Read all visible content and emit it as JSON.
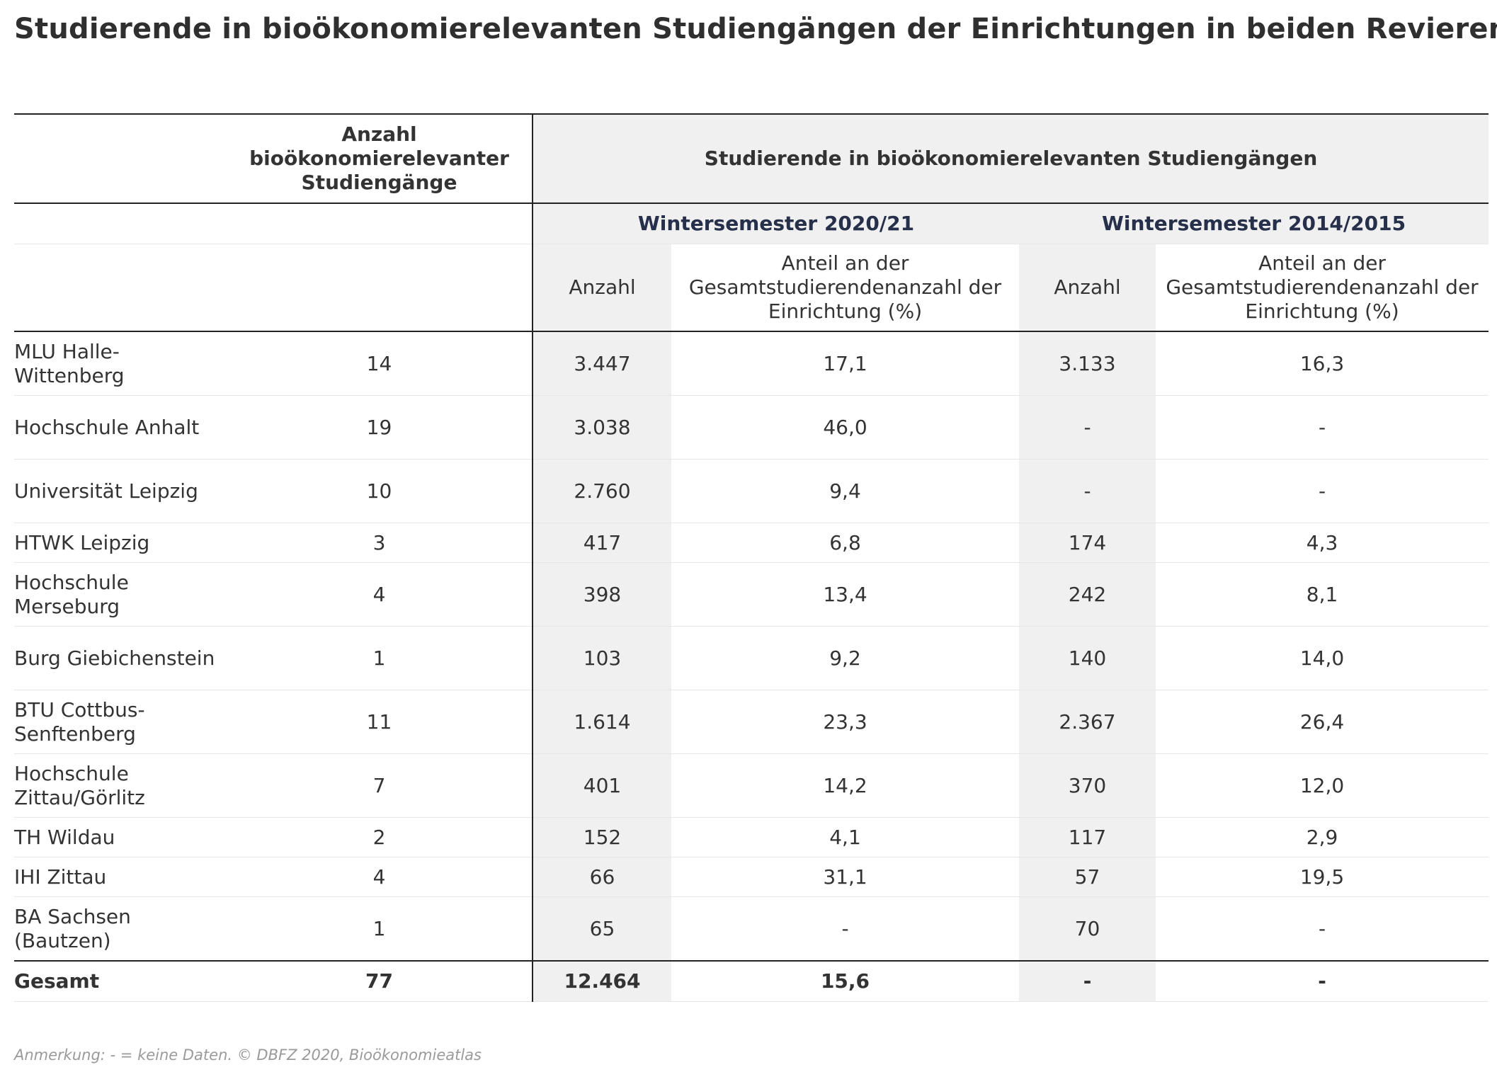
{
  "title": "Studierende in bioökonomierelevanten Studiengängen der Einrichtungen in beiden Revieren",
  "header": {
    "count_col_label": "Anzahl bioökonomierelevanter Studiengänge",
    "group_label": "Studierende in bioökonomierelevanten Studiengängen",
    "semester_a": "Wintersemester 2020/21",
    "semester_b": "Wintersemester 2014/2015",
    "sub_count": "Anzahl",
    "sub_share": "Anteil an der Gesamtstudierendenanzahl der Einrichtung (%)"
  },
  "rows": [
    {
      "name": "MLU Halle-Wittenberg",
      "programs": "14",
      "ws20_count": "3.447",
      "ws20_share": "17,1",
      "ws14_count": "3.133",
      "ws14_share": "16,3"
    },
    {
      "name": "Hochschule Anhalt",
      "programs": "19",
      "ws20_count": "3.038",
      "ws20_share": "46,0",
      "ws14_count": "-",
      "ws14_share": "-"
    },
    {
      "name": "Universität Leipzig",
      "programs": "10",
      "ws20_count": "2.760",
      "ws20_share": "9,4",
      "ws14_count": "-",
      "ws14_share": "-"
    },
    {
      "name": "HTWK Leipzig",
      "programs": "3",
      "ws20_count": "417",
      "ws20_share": "6,8",
      "ws14_count": "174",
      "ws14_share": "4,3"
    },
    {
      "name": "Hochschule Merseburg",
      "programs": "4",
      "ws20_count": "398",
      "ws20_share": "13,4",
      "ws14_count": "242",
      "ws14_share": "8,1"
    },
    {
      "name": "Burg Giebichenstein",
      "programs": "1",
      "ws20_count": "103",
      "ws20_share": "9,2",
      "ws14_count": "140",
      "ws14_share": "14,0"
    },
    {
      "name": "BTU Cottbus-Senftenberg",
      "programs": "11",
      "ws20_count": "1.614",
      "ws20_share": "23,3",
      "ws14_count": "2.367",
      "ws14_share": "26,4"
    },
    {
      "name": "Hochschule Zittau/Görlitz",
      "programs": "7",
      "ws20_count": "401",
      "ws20_share": "14,2",
      "ws14_count": "370",
      "ws14_share": "12,0"
    },
    {
      "name": "TH Wildau",
      "programs": "2",
      "ws20_count": "152",
      "ws20_share": "4,1",
      "ws14_count": "117",
      "ws14_share": "2,9"
    },
    {
      "name": "IHI Zittau",
      "programs": "4",
      "ws20_count": "66",
      "ws20_share": "31,1",
      "ws14_count": "57",
      "ws14_share": "19,5"
    },
    {
      "name": "BA Sachsen (Bautzen)",
      "programs": "1",
      "ws20_count": "65",
      "ws20_share": "-",
      "ws14_count": "70",
      "ws14_share": "-"
    }
  ],
  "total": {
    "name": "Gesamt",
    "programs": "77",
    "ws20_count": "12.464",
    "ws20_share": "15,6",
    "ws14_count": "-",
    "ws14_share": "-"
  },
  "note": "Anmerkung: - = keine Daten. © DBFZ 2020, Bioökonomieatlas",
  "colors": {
    "header_shade": "#f0f0f0",
    "semester_text": "#26304a",
    "rule": "#222222",
    "note": "#9a9a9a"
  }
}
